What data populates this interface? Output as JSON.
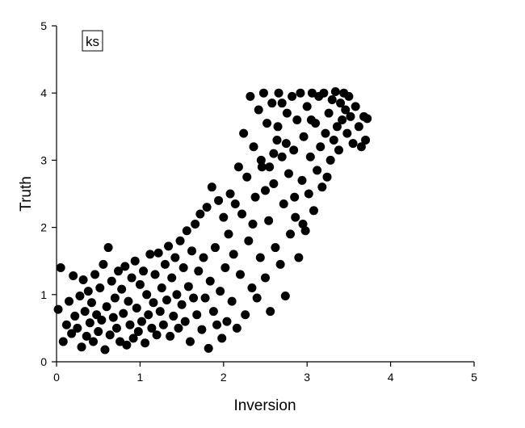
{
  "chart_data": {
    "type": "scatter",
    "xlabel": "Inversion",
    "ylabel": "Truth",
    "xlim": [
      0,
      5
    ],
    "ylim": [
      0,
      5
    ],
    "xticks": [
      0,
      1,
      2,
      3,
      4,
      5
    ],
    "yticks": [
      0,
      1,
      2,
      3,
      4,
      5
    ],
    "grid": false,
    "legend_placement": "top-left",
    "series": [
      {
        "name": "ks",
        "color": "#000000",
        "points": [
          [
            0.02,
            0.78
          ],
          [
            0.05,
            1.4
          ],
          [
            0.08,
            0.3
          ],
          [
            0.12,
            0.55
          ],
          [
            0.15,
            0.9
          ],
          [
            0.18,
            0.42
          ],
          [
            0.2,
            1.28
          ],
          [
            0.22,
            0.68
          ],
          [
            0.25,
            0.5
          ],
          [
            0.28,
            0.98
          ],
          [
            0.3,
            0.22
          ],
          [
            0.32,
            1.22
          ],
          [
            0.34,
            0.75
          ],
          [
            0.36,
            0.38
          ],
          [
            0.38,
            1.05
          ],
          [
            0.4,
            0.58
          ],
          [
            0.42,
            0.88
          ],
          [
            0.44,
            0.3
          ],
          [
            0.46,
            1.3
          ],
          [
            0.48,
            0.7
          ],
          [
            0.5,
            0.45
          ],
          [
            0.52,
            1.1
          ],
          [
            0.54,
            0.62
          ],
          [
            0.56,
            1.45
          ],
          [
            0.58,
            0.18
          ],
          [
            0.6,
            0.82
          ],
          [
            0.62,
            1.7
          ],
          [
            0.64,
            0.4
          ],
          [
            0.66,
            1.2
          ],
          [
            0.68,
            0.66
          ],
          [
            0.7,
            0.95
          ],
          [
            0.72,
            0.5
          ],
          [
            0.74,
            1.35
          ],
          [
            0.76,
            0.3
          ],
          [
            0.78,
            1.08
          ],
          [
            0.8,
            0.72
          ],
          [
            0.82,
            1.42
          ],
          [
            0.84,
            0.25
          ],
          [
            0.86,
            0.9
          ],
          [
            0.88,
            0.55
          ],
          [
            0.9,
            1.25
          ],
          [
            0.92,
            0.35
          ],
          [
            0.94,
            1.5
          ],
          [
            0.96,
            0.8
          ],
          [
            0.98,
            0.45
          ],
          [
            1.0,
            1.15
          ],
          [
            1.02,
            0.6
          ],
          [
            1.04,
            1.35
          ],
          [
            1.06,
            0.28
          ],
          [
            1.08,
            1.0
          ],
          [
            1.1,
            0.7
          ],
          [
            1.12,
            1.6
          ],
          [
            1.14,
            0.5
          ],
          [
            1.16,
            0.88
          ],
          [
            1.18,
            1.3
          ],
          [
            1.2,
            0.4
          ],
          [
            1.22,
            1.62
          ],
          [
            1.24,
            0.75
          ],
          [
            1.26,
            1.1
          ],
          [
            1.28,
            0.55
          ],
          [
            1.3,
            1.45
          ],
          [
            1.32,
            0.92
          ],
          [
            1.34,
            1.72
          ],
          [
            1.36,
            0.38
          ],
          [
            1.38,
            1.25
          ],
          [
            1.4,
            0.68
          ],
          [
            1.42,
            1.55
          ],
          [
            1.44,
            1.0
          ],
          [
            1.46,
            0.5
          ],
          [
            1.48,
            1.8
          ],
          [
            1.5,
            0.85
          ],
          [
            1.52,
            1.4
          ],
          [
            1.54,
            0.6
          ],
          [
            1.56,
            1.95
          ],
          [
            1.58,
            1.12
          ],
          [
            1.6,
            0.3
          ],
          [
            1.62,
            1.65
          ],
          [
            1.64,
            0.95
          ],
          [
            1.66,
            2.05
          ],
          [
            1.68,
            0.7
          ],
          [
            1.7,
            1.35
          ],
          [
            1.72,
            2.2
          ],
          [
            1.74,
            0.48
          ],
          [
            1.76,
            1.55
          ],
          [
            1.78,
            0.95
          ],
          [
            1.8,
            2.3
          ],
          [
            1.82,
            0.2
          ],
          [
            1.84,
            1.2
          ],
          [
            1.86,
            2.6
          ],
          [
            1.88,
            0.75
          ],
          [
            1.9,
            1.7
          ],
          [
            1.92,
            0.55
          ],
          [
            1.94,
            2.4
          ],
          [
            1.96,
            1.05
          ],
          [
            1.98,
            0.35
          ],
          [
            2.0,
            2.15
          ],
          [
            2.02,
            1.4
          ],
          [
            2.04,
            0.6
          ],
          [
            2.06,
            1.9
          ],
          [
            2.08,
            2.5
          ],
          [
            2.1,
            0.9
          ],
          [
            2.12,
            1.6
          ],
          [
            2.14,
            2.35
          ],
          [
            2.16,
            0.5
          ],
          [
            2.18,
            2.9
          ],
          [
            2.2,
            1.3
          ],
          [
            2.22,
            2.2
          ],
          [
            2.24,
            3.4
          ],
          [
            2.26,
            0.7
          ],
          [
            2.28,
            2.75
          ],
          [
            2.3,
            1.8
          ],
          [
            2.32,
            3.95
          ],
          [
            2.34,
            1.1
          ],
          [
            2.36,
            3.2
          ],
          [
            2.38,
            2.45
          ],
          [
            2.4,
            0.95
          ],
          [
            2.42,
            3.75
          ],
          [
            2.44,
            1.55
          ],
          [
            2.46,
            2.9
          ],
          [
            2.48,
            4.0
          ],
          [
            2.5,
            1.25
          ],
          [
            2.52,
            3.55
          ],
          [
            2.54,
            2.1
          ],
          [
            2.56,
            0.75
          ],
          [
            2.58,
            3.85
          ],
          [
            2.6,
            2.65
          ],
          [
            2.62,
            1.7
          ],
          [
            2.64,
            3.3
          ],
          [
            2.66,
            4.0
          ],
          [
            2.68,
            1.45
          ],
          [
            2.7,
            3.05
          ],
          [
            2.72,
            2.35
          ],
          [
            2.74,
            0.98
          ],
          [
            2.76,
            3.7
          ],
          [
            2.78,
            2.8
          ],
          [
            2.8,
            1.9
          ],
          [
            2.82,
            3.95
          ],
          [
            2.84,
            3.15
          ],
          [
            2.86,
            2.15
          ],
          [
            2.88,
            3.6
          ],
          [
            2.9,
            1.55
          ],
          [
            2.92,
            4.0
          ],
          [
            2.94,
            2.7
          ],
          [
            2.96,
            3.35
          ],
          [
            2.98,
            1.95
          ],
          [
            3.0,
            3.8
          ],
          [
            3.02,
            2.5
          ],
          [
            3.04,
            3.05
          ],
          [
            3.06,
            4.0
          ],
          [
            3.08,
            2.25
          ],
          [
            3.1,
            3.55
          ],
          [
            3.12,
            2.85
          ],
          [
            3.14,
            3.95
          ],
          [
            3.16,
            3.2
          ],
          [
            3.18,
            2.6
          ],
          [
            3.2,
            4.0
          ],
          [
            3.22,
            3.4
          ],
          [
            3.24,
            2.75
          ],
          [
            3.26,
            3.7
          ],
          [
            3.28,
            3.0
          ],
          [
            3.3,
            3.9
          ],
          [
            3.32,
            3.3
          ],
          [
            3.34,
            4.02
          ],
          [
            3.36,
            3.5
          ],
          [
            3.38,
            3.15
          ],
          [
            3.4,
            3.85
          ],
          [
            3.42,
            3.6
          ],
          [
            3.44,
            4.0
          ],
          [
            3.46,
            3.75
          ],
          [
            3.48,
            3.4
          ],
          [
            3.5,
            3.95
          ],
          [
            3.52,
            3.65
          ],
          [
            3.55,
            3.25
          ],
          [
            3.58,
            3.8
          ],
          [
            3.62,
            3.5
          ],
          [
            3.65,
            3.2
          ],
          [
            3.68,
            3.65
          ],
          [
            3.7,
            3.3
          ],
          [
            3.72,
            3.62
          ],
          [
            2.45,
            3.0
          ],
          [
            2.55,
            2.9
          ],
          [
            2.65,
            3.5
          ],
          [
            2.75,
            3.25
          ],
          [
            2.85,
            2.45
          ],
          [
            2.95,
            2.05
          ],
          [
            3.05,
            3.6
          ],
          [
            2.35,
            2.05
          ],
          [
            2.5,
            2.55
          ],
          [
            2.6,
            3.1
          ],
          [
            2.7,
            3.85
          ]
        ]
      }
    ]
  }
}
